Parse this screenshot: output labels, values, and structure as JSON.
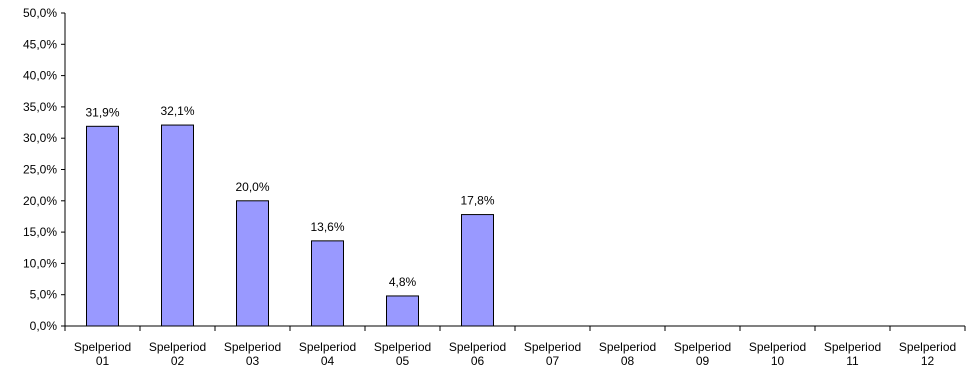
{
  "chart_data": {
    "type": "bar",
    "title": "",
    "xlabel": "",
    "ylabel": "",
    "categories": [
      [
        "Spelperiod",
        "01"
      ],
      [
        "Spelperiod",
        "02"
      ],
      [
        "Spelperiod",
        "03"
      ],
      [
        "Spelperiod",
        "04"
      ],
      [
        "Spelperiod",
        "05"
      ],
      [
        "Spelperiod",
        "06"
      ],
      [
        "Spelperiod",
        "07"
      ],
      [
        "Spelperiod",
        "08"
      ],
      [
        "Spelperiod",
        "09"
      ],
      [
        "Spelperiod",
        "10"
      ],
      [
        "Spelperiod",
        "11"
      ],
      [
        "Spelperiod",
        "12"
      ]
    ],
    "values": [
      31.9,
      32.1,
      20.0,
      13.6,
      4.8,
      17.8,
      null,
      null,
      null,
      null,
      null,
      null
    ],
    "data_labels": [
      "31,9%",
      "32,1%",
      "20,0%",
      "13,6%",
      "4,8%",
      "17,8%",
      "",
      "",
      "",
      "",
      "",
      ""
    ],
    "ylim": [
      0,
      50
    ],
    "y_ticks": [
      {
        "value": 0,
        "label": "0,0%"
      },
      {
        "value": 5,
        "label": "5,0%"
      },
      {
        "value": 10,
        "label": "10,0%"
      },
      {
        "value": 15,
        "label": "15,0%"
      },
      {
        "value": 20,
        "label": "20,0%"
      },
      {
        "value": 25,
        "label": "25,0%"
      },
      {
        "value": 30,
        "label": "30,0%"
      },
      {
        "value": 35,
        "label": "35,0%"
      },
      {
        "value": 40,
        "label": "40,0%"
      },
      {
        "value": 45,
        "label": "45,0%"
      },
      {
        "value": 50,
        "label": "50,0%"
      }
    ],
    "grid": false,
    "legend": "none",
    "colors": {
      "bar": "#9999ff",
      "bar_stroke": "#000000",
      "axis": "#000000"
    }
  }
}
